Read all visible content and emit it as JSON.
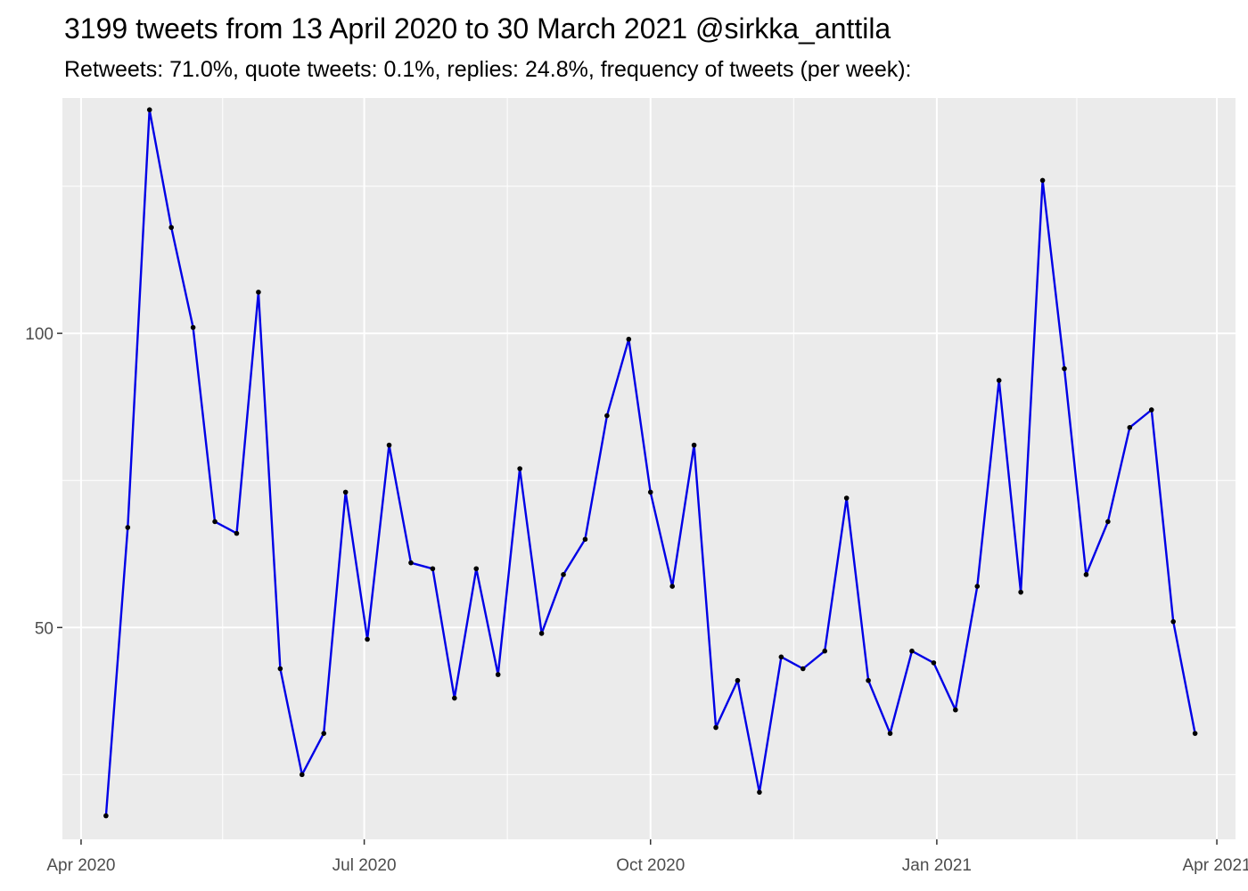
{
  "chart_data": {
    "type": "line",
    "title": "3199 tweets from 13 April 2020 to 30 March 2021 @sirkka_anttila",
    "subtitle": "Retweets: 71.0%, quote tweets: 0.1%, replies: 24.8%, frequency of tweets (per week):",
    "xlabel": "",
    "ylabel": "",
    "x_ticks": [
      {
        "date": "2020-04-01",
        "label": "Apr 2020"
      },
      {
        "date": "2020-07-01",
        "label": "Jul 2020"
      },
      {
        "date": "2020-10-01",
        "label": "Oct 2020"
      },
      {
        "date": "2021-01-01",
        "label": "Jan 2021"
      },
      {
        "date": "2021-04-01",
        "label": "Apr 2021"
      }
    ],
    "y_ticks": [
      50,
      100
    ],
    "ylim": [
      14,
      140
    ],
    "xlim": [
      "2020-03-26",
      "2021-04-07"
    ],
    "grid": true,
    "colors": {
      "line": "#0000e6",
      "point": "#000000",
      "panel": "#ebebeb",
      "grid": "#ffffff"
    },
    "series": [
      {
        "x": [
          "2020-04-09",
          "2020-04-16",
          "2020-04-23",
          "2020-04-30",
          "2020-05-07",
          "2020-05-14",
          "2020-05-21",
          "2020-05-28",
          "2020-06-04",
          "2020-06-11",
          "2020-06-18",
          "2020-06-25",
          "2020-07-02",
          "2020-07-09",
          "2020-07-16",
          "2020-07-23",
          "2020-07-30",
          "2020-08-06",
          "2020-08-13",
          "2020-08-20",
          "2020-08-27",
          "2020-09-03",
          "2020-09-10",
          "2020-09-17",
          "2020-09-24",
          "2020-10-01",
          "2020-10-08",
          "2020-10-15",
          "2020-10-22",
          "2020-10-29",
          "2020-11-05",
          "2020-11-12",
          "2020-11-19",
          "2020-11-26",
          "2020-12-03",
          "2020-12-10",
          "2020-12-17",
          "2020-12-24",
          "2020-12-31",
          "2021-01-07",
          "2021-01-14",
          "2021-01-21",
          "2021-01-28",
          "2021-02-04",
          "2021-02-11",
          "2021-02-18",
          "2021-02-25",
          "2021-03-04",
          "2021-03-11",
          "2021-03-18",
          "2021-03-25"
        ],
        "values": [
          18,
          67,
          138,
          118,
          101,
          68,
          66,
          107,
          43,
          25,
          32,
          73,
          48,
          81,
          61,
          60,
          38,
          60,
          42,
          77,
          49,
          59,
          65,
          86,
          99,
          73,
          57,
          81,
          33,
          41,
          22,
          45,
          43,
          46,
          72,
          41,
          32,
          46,
          44,
          36,
          57,
          92,
          56,
          126,
          94,
          59,
          68,
          84,
          87,
          51,
          32
        ]
      }
    ]
  }
}
